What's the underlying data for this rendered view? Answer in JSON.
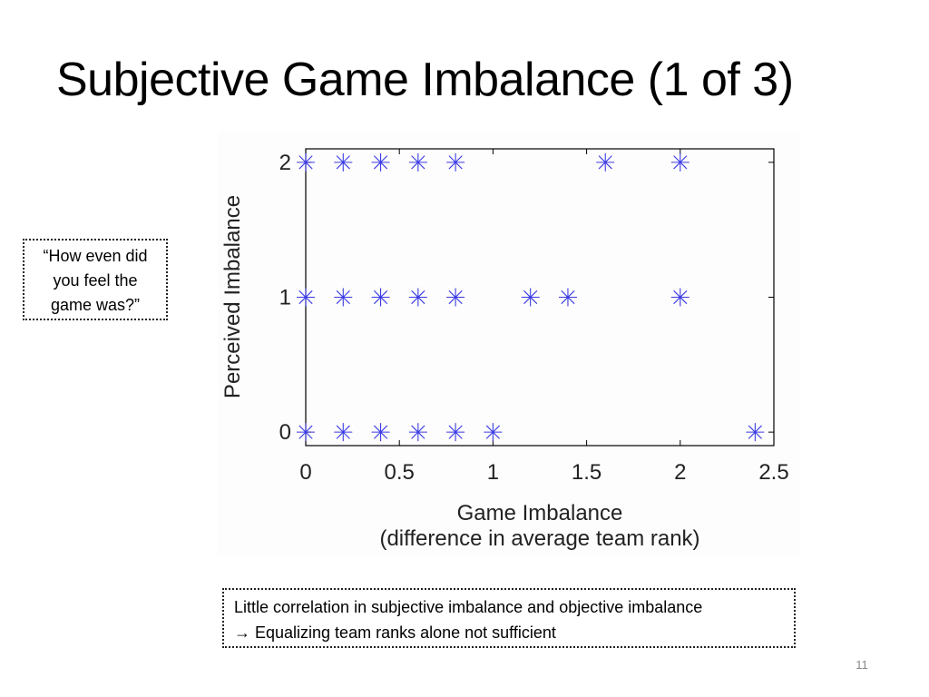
{
  "slide": {
    "title": "Subjective Game Imbalance (1 of 3)",
    "callout_left": [
      "“How even did",
      "you feel the",
      "game was?”"
    ],
    "callout_bottom": {
      "line1": "Little correlation in subjective imbalance and objective imbalance",
      "line2_arrow": "→",
      "line2_text": " Equalizing team ranks alone not sufficient"
    },
    "page_number": "11"
  },
  "colors": {
    "marker": "#3a3ae6",
    "axis": "#000000"
  },
  "chart_data": {
    "type": "scatter",
    "title": "",
    "xlabel": "Game Imbalance",
    "xlabel_line2": "(difference in average team rank)",
    "ylabel": "Perceived Imbalance",
    "xlim": [
      0,
      2.5
    ],
    "ylim": [
      0,
      2
    ],
    "xticks": [
      "0",
      "0.5",
      "1",
      "1.5",
      "2",
      "2.5"
    ],
    "xtick_values": [
      0,
      0.5,
      1,
      1.5,
      2,
      2.5
    ],
    "yticks": [
      "0",
      "1",
      "2"
    ],
    "ytick_values": [
      0,
      1,
      2
    ],
    "grid": false,
    "marker": "asterisk",
    "points": [
      {
        "x": 0,
        "y": 2
      },
      {
        "x": 0.2,
        "y": 2
      },
      {
        "x": 0.4,
        "y": 2
      },
      {
        "x": 0.6,
        "y": 2
      },
      {
        "x": 0.8,
        "y": 2
      },
      {
        "x": 1.6,
        "y": 2
      },
      {
        "x": 2.0,
        "y": 2
      },
      {
        "x": 0,
        "y": 1
      },
      {
        "x": 0.2,
        "y": 1
      },
      {
        "x": 0.4,
        "y": 1
      },
      {
        "x": 0.6,
        "y": 1
      },
      {
        "x": 0.8,
        "y": 1
      },
      {
        "x": 1.2,
        "y": 1
      },
      {
        "x": 1.4,
        "y": 1
      },
      {
        "x": 2.0,
        "y": 1
      },
      {
        "x": 0,
        "y": 0
      },
      {
        "x": 0.2,
        "y": 0
      },
      {
        "x": 0.4,
        "y": 0
      },
      {
        "x": 0.6,
        "y": 0
      },
      {
        "x": 0.8,
        "y": 0
      },
      {
        "x": 1.0,
        "y": 0
      },
      {
        "x": 2.4,
        "y": 0
      }
    ]
  }
}
